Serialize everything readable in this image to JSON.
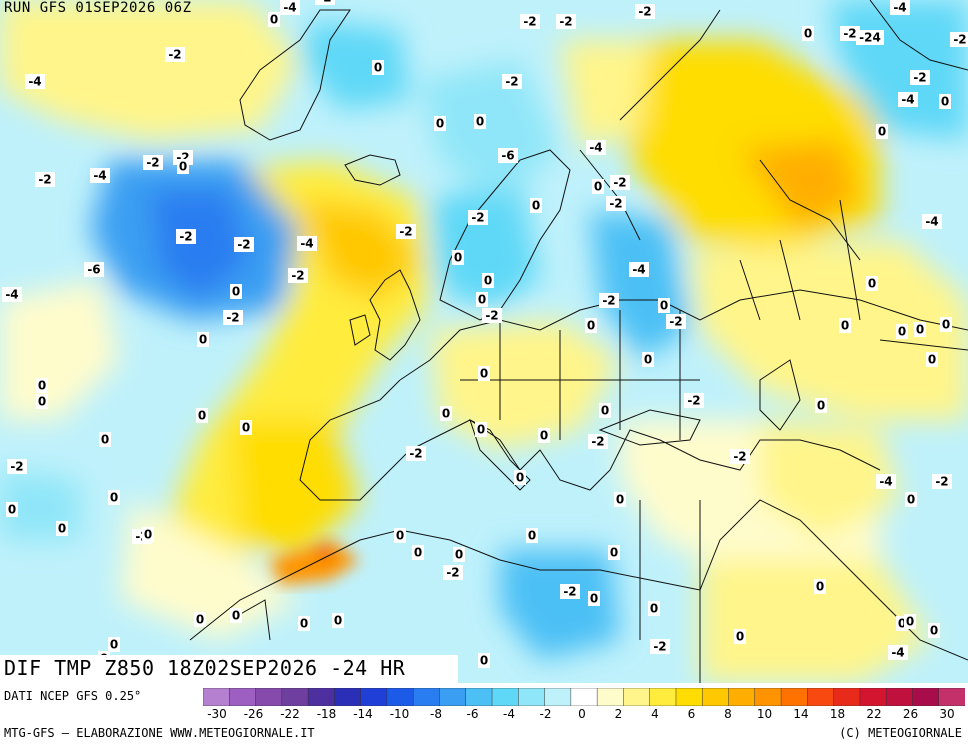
{
  "header": {
    "run_label": "RUN GFS 01SEP2026 06Z"
  },
  "footer": {
    "field_label": "DIF TMP Z850 18Z02SEP2026 -24 HR",
    "source_label": "DATI NCEP GFS 0.25°",
    "credit_left": "MTG-GFS — ELABORAZIONE WWW.METEOGIORNALE.IT",
    "credit_right": "(C) METEOGIORNALE"
  },
  "legend": {
    "ticks": [
      "-30",
      "-26",
      "-22",
      "-18",
      "-14",
      "-10",
      "-8",
      "-6",
      "-4",
      "-2",
      "0",
      "2",
      "4",
      "6",
      "8",
      "10",
      "14",
      "18",
      "22",
      "26",
      "30"
    ],
    "colors": [
      "#b580d0",
      "#9e5fc2",
      "#864aad",
      "#6e3f9e",
      "#4d2fa0",
      "#2b2fb8",
      "#1f3fd6",
      "#1c5be8",
      "#2a7df0",
      "#3a9ff2",
      "#4cc0f5",
      "#5fd8f7",
      "#8fe6f8",
      "#bff1fb",
      "#ffffff",
      "#fffccc",
      "#fff58a",
      "#ffec3d",
      "#ffdd00",
      "#ffc800",
      "#ffae00",
      "#ff9400",
      "#ff7200",
      "#f84a10",
      "#e82a1a",
      "#d41530",
      "#c0103e",
      "#a80c4a",
      "#c3306a"
    ]
  },
  "contour_labels": [
    {
      "text": "-2"
    },
    {
      "text": "-4"
    },
    {
      "text": "-6"
    },
    {
      "text": "0"
    },
    {
      "text": "-24"
    }
  ],
  "map_labels": [
    "-4",
    "-2",
    "0",
    "-2",
    "-2",
    "-2",
    "-4",
    "0",
    "-2",
    "-24",
    "-2",
    "0",
    "-2",
    "-4",
    "0",
    "-2",
    "0",
    "-2",
    "-4",
    "0",
    "0",
    "-2",
    "-2",
    "0",
    "-2",
    "-4",
    "-6",
    "-4",
    "0",
    "-2",
    "-2",
    "0",
    "-2",
    "-4",
    "-2",
    "-2",
    "-4",
    "-2",
    "0",
    "-2",
    "-6",
    "0",
    "-4",
    "0",
    "0",
    "-2",
    "-4",
    "-2",
    "0",
    "0",
    "-2",
    "-2",
    "0",
    "0",
    "0",
    "0",
    "0",
    "0",
    "0",
    "0",
    "0",
    "0",
    "0",
    "0",
    "0",
    "0",
    "0",
    "0",
    "-2",
    "0",
    "0",
    "-2",
    "0",
    "-2",
    "-2",
    "0",
    "-2",
    "-4",
    "-2",
    "0",
    "0",
    "0",
    "0",
    "0",
    "-2",
    "0",
    "0",
    "0",
    "0",
    "-2",
    "0",
    "0",
    "-2",
    "0",
    "0",
    "0",
    "0",
    "0",
    "0",
    "0",
    "0",
    "0",
    "0",
    "0",
    "0",
    "-2",
    "-4",
    "0",
    "0",
    "-2",
    "0",
    "0",
    "0",
    "-2",
    "-2",
    "0",
    "-2",
    "-4",
    "-2",
    "-2"
  ]
}
